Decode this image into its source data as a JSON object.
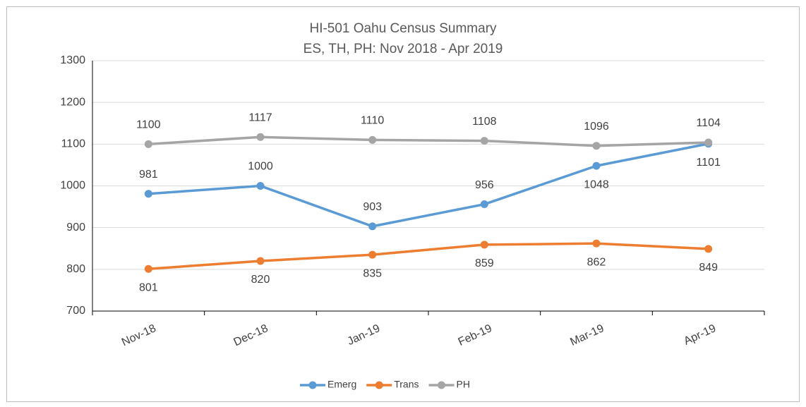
{
  "chart_data": {
    "type": "line",
    "title": "HI-501 Oahu Census Summary",
    "subtitle": "ES, TH, PH: Nov 2018 - Apr 2019",
    "categories": [
      "Nov-18",
      "Dec-18",
      "Jan-19",
      "Feb-19",
      "Mar-19",
      "Apr-19"
    ],
    "series": [
      {
        "name": "Emerg",
        "color": "#5b9bd5",
        "values": [
          981,
          1000,
          903,
          956,
          1048,
          1101
        ]
      },
      {
        "name": "Trans",
        "color": "#ed7d31",
        "values": [
          801,
          820,
          835,
          859,
          862,
          849
        ]
      },
      {
        "name": "PH",
        "color": "#a5a5a5",
        "values": [
          1100,
          1117,
          1110,
          1108,
          1096,
          1104
        ]
      }
    ],
    "ylim": [
      700,
      1300
    ],
    "yticks": [
      700,
      800,
      900,
      1000,
      1100,
      1200,
      1300
    ],
    "grid": true,
    "legend": "bottom"
  }
}
